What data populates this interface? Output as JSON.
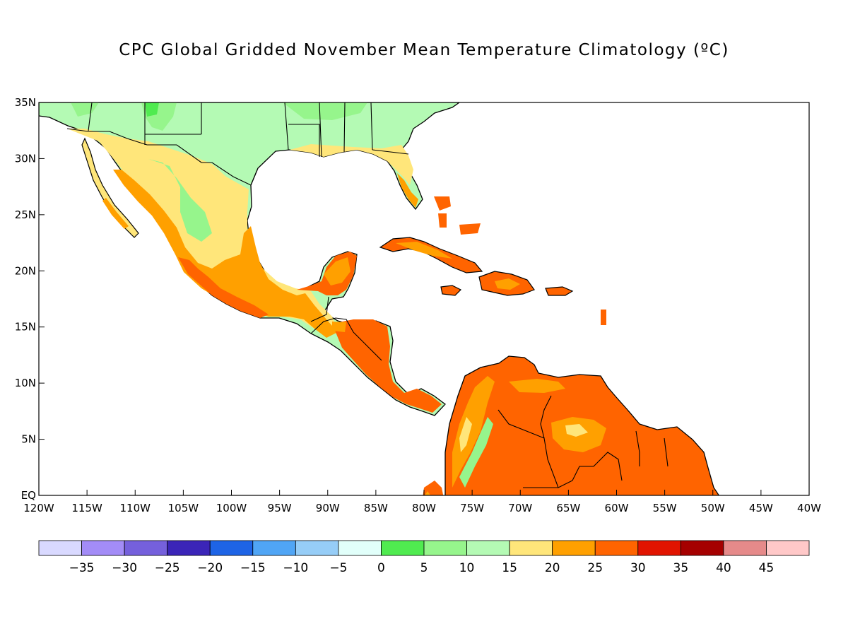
{
  "title": "CPC Global Gridded November Mean Temperature Climatology (ºC)",
  "map": {
    "lon_range": [
      -120,
      -40
    ],
    "lat_range": [
      0,
      35
    ],
    "x_tick_labels": [
      "120W",
      "115W",
      "110W",
      "105W",
      "100W",
      "95W",
      "90W",
      "85W",
      "80W",
      "75W",
      "70W",
      "65W",
      "60W",
      "55W",
      "50W",
      "45W",
      "40W"
    ],
    "y_tick_labels": [
      "EQ",
      "5N",
      "10N",
      "15N",
      "20N",
      "25N",
      "30N",
      "35N"
    ],
    "ocean_color": "#ffffff",
    "coastline_color": "#000000",
    "land_color_hint": "#ff6a00"
  },
  "colorbar": {
    "colors": [
      "#d9d9ff",
      "#a38cf7",
      "#7560dc",
      "#3b25b8",
      "#1e64e6",
      "#50a5f5",
      "#96cdf7",
      "#e1fffa",
      "#50eb50",
      "#96f58c",
      "#b4fab4",
      "#ffe67a",
      "#ffa000",
      "#ff6400",
      "#e11400",
      "#a50000",
      "#e68a8a",
      "#ffc8c8"
    ],
    "labels": [
      "-35",
      "-30",
      "-25",
      "-20",
      "-15",
      "-10",
      "-5",
      "0",
      "5",
      "10",
      "15",
      "20",
      "25",
      "30",
      "35",
      "40",
      "45"
    ]
  }
}
